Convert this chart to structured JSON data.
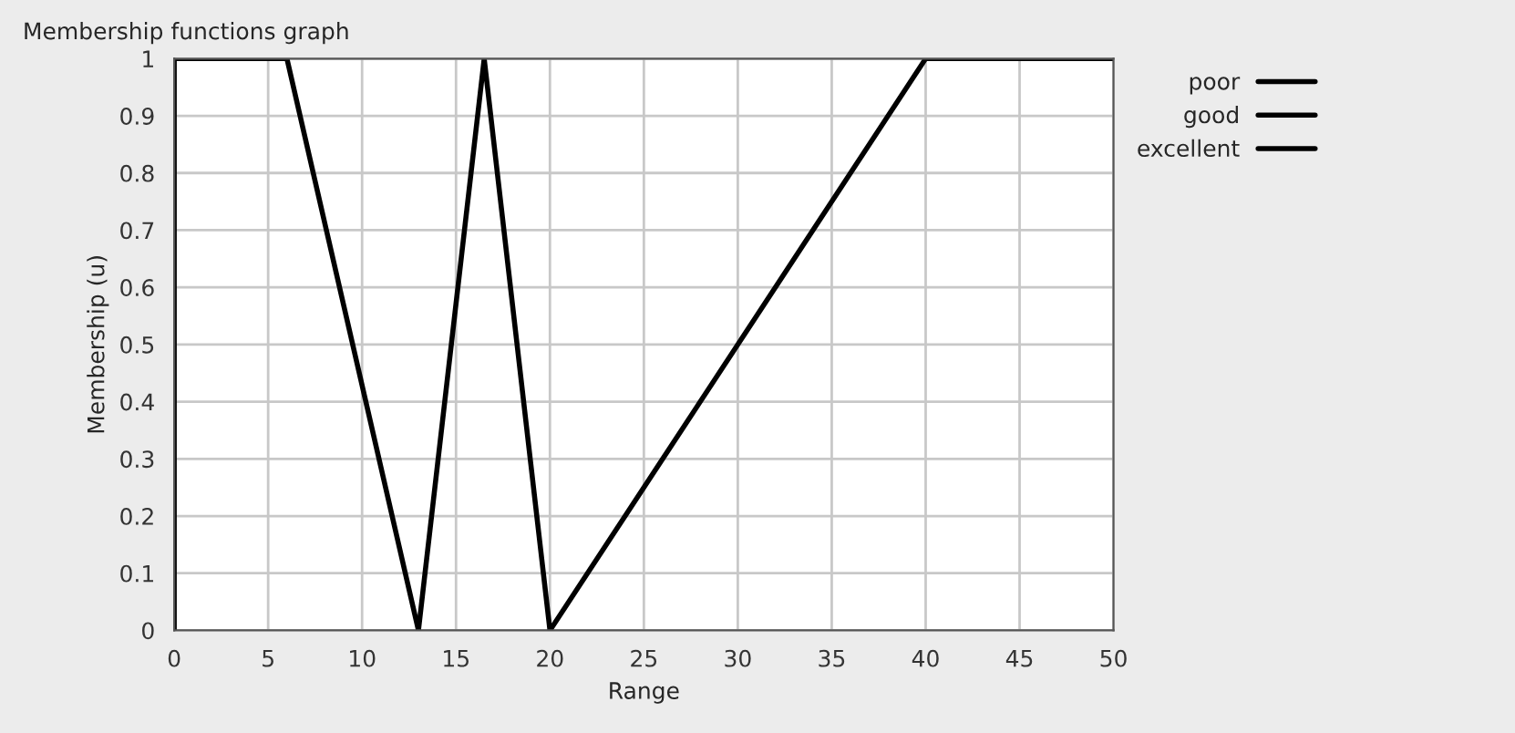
{
  "chart_data": {
    "type": "line",
    "title": "Membership functions graph",
    "xlabel": "Range",
    "ylabel": "Membership (u)",
    "xlim": [
      0,
      50
    ],
    "ylim": [
      0,
      1
    ],
    "xticks": [
      0,
      5,
      10,
      15,
      20,
      25,
      30,
      35,
      40,
      45,
      50
    ],
    "yticks": [
      0,
      0.1,
      0.2,
      0.3,
      0.4,
      0.5,
      0.6,
      0.7,
      0.8,
      0.9,
      1
    ],
    "grid": true,
    "legend": "right",
    "line_style": "solid",
    "marker": "none",
    "series": [
      {
        "name": "poor",
        "color": "#000000",
        "x": [
          0,
          0,
          6,
          13
        ],
        "values": [
          0,
          1,
          1,
          0
        ]
      },
      {
        "name": "good",
        "color": "#000000",
        "x": [
          13,
          16.5,
          20
        ],
        "values": [
          0,
          1,
          0
        ]
      },
      {
        "name": "excellent",
        "color": "#000000",
        "x": [
          20,
          40,
          50
        ],
        "values": [
          0,
          1,
          1
        ]
      }
    ]
  }
}
